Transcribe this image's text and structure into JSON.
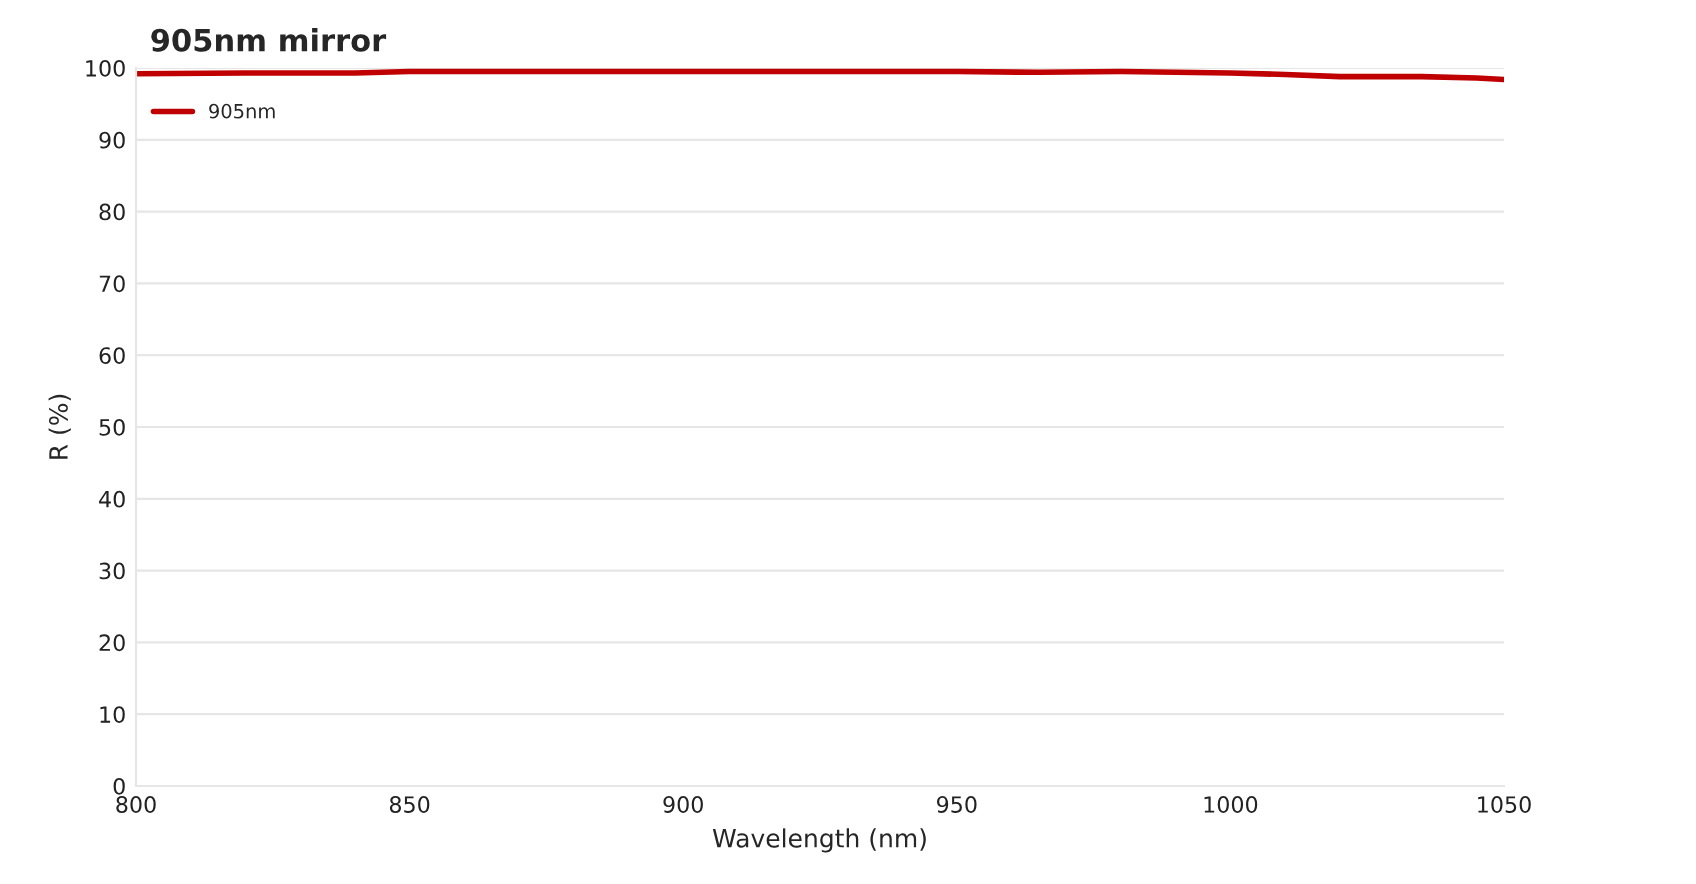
{
  "chart_data": {
    "type": "line",
    "title": "905nm mirror",
    "xlabel": "Wavelength (nm)",
    "ylabel": "R (%)",
    "x": [
      800,
      820,
      840,
      850,
      875,
      900,
      925,
      950,
      965,
      980,
      1000,
      1010,
      1020,
      1035,
      1045,
      1050
    ],
    "series": [
      {
        "name": "905nm",
        "color": "#c00000",
        "values": [
          99.2,
          99.3,
          99.3,
          99.5,
          99.5,
          99.5,
          99.5,
          99.5,
          99.4,
          99.5,
          99.3,
          99.1,
          98.8,
          98.8,
          98.6,
          98.4
        ]
      }
    ],
    "xlim": [
      800,
      1050
    ],
    "xticks": [
      800,
      850,
      900,
      950,
      1000,
      1050
    ],
    "ylim": [
      0,
      100
    ],
    "yticks": [
      0,
      10,
      20,
      30,
      40,
      50,
      60,
      70,
      80,
      90,
      100
    ],
    "grid": "y",
    "legend": "top left",
    "marker": "none",
    "line_style": "solid"
  }
}
